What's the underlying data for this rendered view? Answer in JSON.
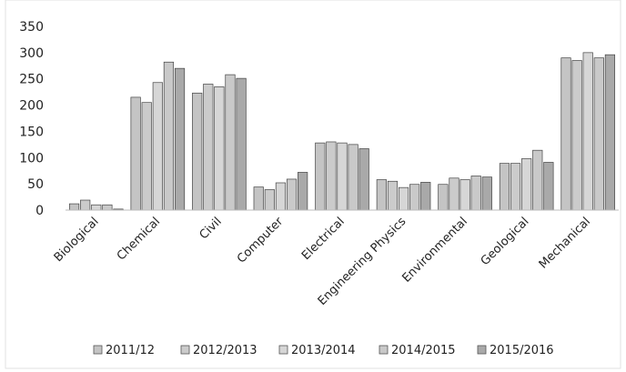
{
  "chart_data": {
    "type": "bar",
    "title": "",
    "xlabel": "",
    "ylabel": "",
    "ylim": [
      0,
      350
    ],
    "yticks": [
      0,
      50,
      100,
      150,
      200,
      250,
      300,
      350
    ],
    "grid": false,
    "legend_position": "bottom",
    "categories": [
      "Biological",
      "Chemical",
      "Civil",
      "Computer",
      "Electrical",
      "Engineering Physics",
      "Environmental",
      "Geological",
      "Mechanical"
    ],
    "series": [
      {
        "name": "2011/12",
        "color": "#c4c4c4",
        "values": [
          12,
          215,
          223,
          44,
          128,
          58,
          49,
          89,
          290
        ]
      },
      {
        "name": "2012/2013",
        "color": "#cbcbcb",
        "values": [
          19,
          205,
          240,
          39,
          130,
          55,
          61,
          89,
          285
        ]
      },
      {
        "name": "2013/2014",
        "color": "#d6d6d6",
        "values": [
          10,
          243,
          235,
          52,
          128,
          43,
          58,
          98,
          300
        ]
      },
      {
        "name": "2014/2015",
        "color": "#c9c9c9",
        "values": [
          10,
          282,
          258,
          59,
          125,
          49,
          65,
          114,
          290
        ]
      },
      {
        "name": "2015/2016",
        "color": "#a9a9a9",
        "values": [
          2,
          270,
          251,
          72,
          117,
          53,
          63,
          91,
          296
        ]
      }
    ]
  }
}
